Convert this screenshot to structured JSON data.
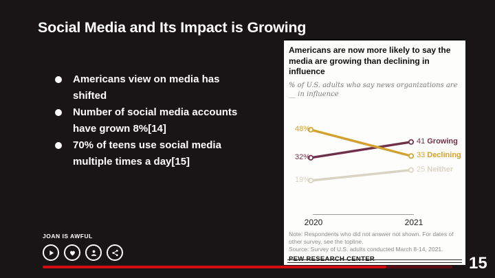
{
  "slide": {
    "title": "Social Media and Its Impact is Growing",
    "bullets": [
      "Americans view on media has shifted",
      "Number of social media accounts have grown 8%[14]",
      "70% of teens use social media multiple times a day[15]"
    ],
    "page_number": "15"
  },
  "footer": {
    "label": "JOAN IS AWFUL",
    "icons": [
      "play-icon",
      "heart-icon",
      "profile-icon",
      "share-icon"
    ]
  },
  "colors": {
    "progress_red": "#d40d12",
    "progress_red_dark": "#5c1016",
    "growing_maroon": "#6f304a",
    "declining_gold": "#d1a22e",
    "neither_tan": "#d9d3c3",
    "slide_background": "#191415",
    "chart_background": "#fdfdfc"
  },
  "chart": {
    "title": "Americans are now more likely to say the media are growing than declining in influence",
    "subtitle": "% of U.S. adults who say news organizations are __ in influence",
    "note": "Note: Respondents who did not answer not shown. For dates of other survey, see the topline.",
    "source": "Source: Survey of U.S. adults conducted March 8-14, 2021.",
    "brand": "PEW RESEARCH CENTER"
  },
  "chart_data": {
    "type": "line",
    "subtype": "slopegraph",
    "title": "Americans are now more likely to say the media are growing than declining in influence",
    "subtitle": "% of U.S. adults who say news organizations are __ in influence",
    "x": [
      "2020",
      "2021"
    ],
    "series": [
      {
        "name": "Growing",
        "values": [
          32,
          41
        ],
        "color": "#6f304a",
        "left_label": "32%",
        "right_label_num": "41",
        "right_label_name": "Growing"
      },
      {
        "name": "Declining",
        "values": [
          48,
          33
        ],
        "color": "#d1a22e",
        "left_label": "48%",
        "right_label_num": "33",
        "right_label_name": "Declining"
      },
      {
        "name": "Neither",
        "values": [
          19,
          25
        ],
        "color": "#d9d3c3",
        "left_label": "19%",
        "right_label_num": "25",
        "right_label_name": "Neither"
      }
    ],
    "ylim": [
      19,
      48
    ],
    "grid": false,
    "legend_position": "inline-right",
    "marker": "open-circle"
  }
}
